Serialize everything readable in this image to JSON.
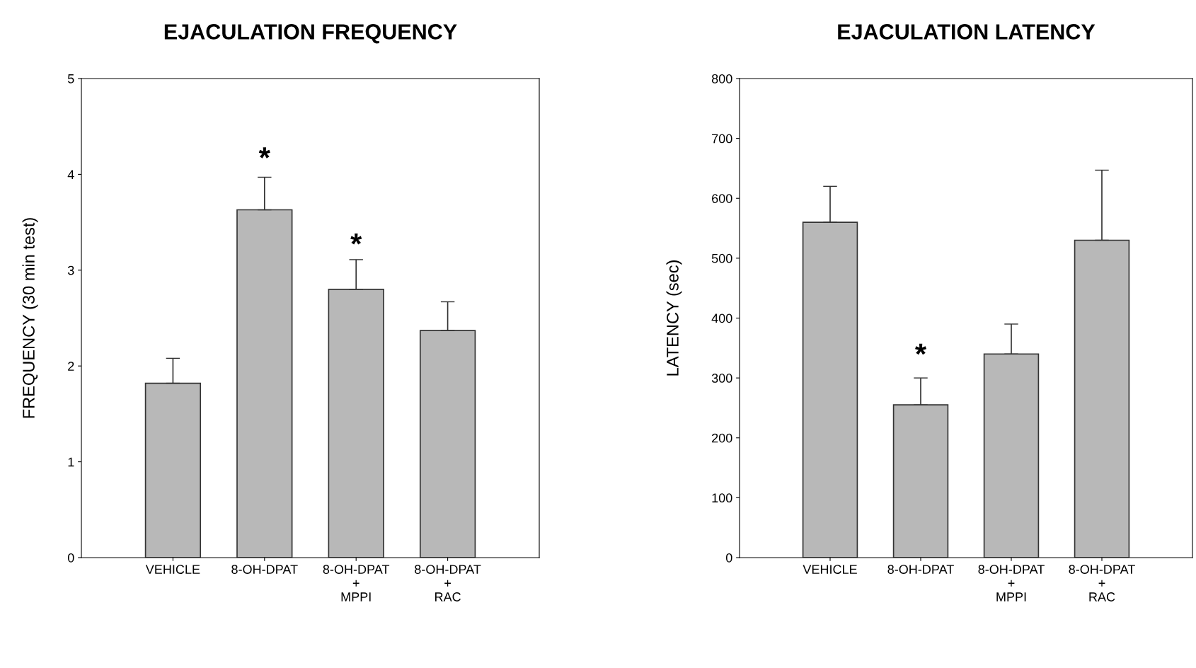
{
  "chart_data": [
    {
      "type": "bar",
      "title": "EJACULATION FREQUENCY",
      "ylabel": "FREQUENCY (30 min test)",
      "categories": [
        "VEHICLE",
        "8-OH-DPAT",
        "8-OH-DPAT\n+\nMPPI",
        "8-OH-DPAT\n+\nRAC"
      ],
      "values": [
        1.82,
        3.63,
        2.8,
        2.37
      ],
      "errors": [
        [
          1.82,
          2.08
        ],
        [
          3.63,
          3.97
        ],
        [
          2.8,
          3.11
        ],
        [
          2.37,
          2.67
        ]
      ],
      "color": "#b8b8b8",
      "ylim": [
        0,
        5
      ],
      "yticks": [
        0,
        1,
        2,
        3,
        4,
        5
      ],
      "grid": false,
      "annotations": [
        "*",
        "*"
      ]
    },
    {
      "type": "bar",
      "title": "EJACULATION LATENCY",
      "ylabel": "LATENCY (sec)",
      "categories": [
        "VEHICLE",
        "8-OH-DPAT",
        "8-OH-DPAT\n+\nMPPI",
        "8-OH-DPAT\n+\nRAC"
      ],
      "values": [
        560,
        255,
        340,
        530
      ],
      "errors": [
        [
          560,
          620
        ],
        [
          255,
          300
        ],
        [
          340,
          390
        ],
        [
          530,
          647
        ]
      ],
      "color": "#b8b8b8",
      "ylim": [
        0,
        800
      ],
      "yticks": [
        0,
        100,
        200,
        300,
        400,
        500,
        600,
        700,
        800
      ],
      "grid": false,
      "annotations": [
        "*"
      ]
    }
  ]
}
